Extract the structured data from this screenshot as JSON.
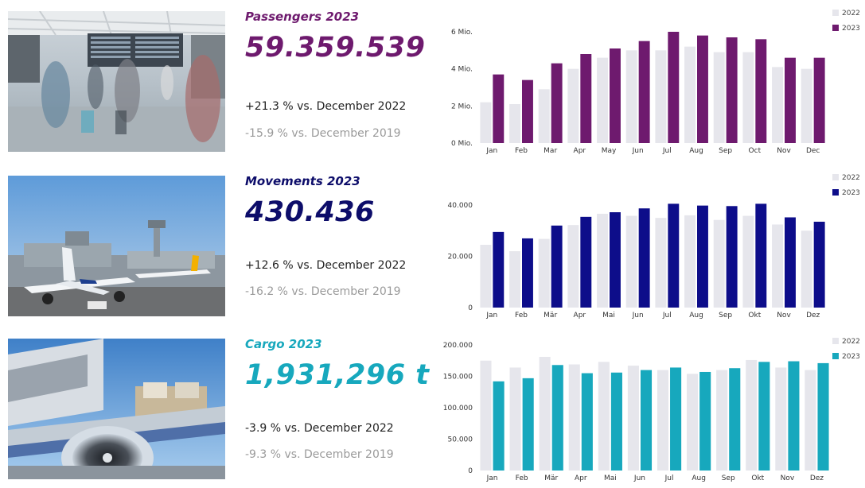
{
  "passengers": {
    "title": "Passengers 2023",
    "value": "59.359.539",
    "yoy": "+21.3 % vs. December 2022",
    "vs2019": "-15.9 % vs. December 2019",
    "color": "#6e1a6e"
  },
  "movements": {
    "title": "Movements 2023",
    "value": "430.436",
    "yoy": "+12.6 % vs. December 2022",
    "vs2019": "-16.2 % vs. December 2019",
    "color": "#0d0d8a"
  },
  "cargo": {
    "title": "Cargo 2023",
    "value": "1,931,296 t",
    "yoy": "-3.9 % vs. December 2022",
    "vs2019": "-9.3 % vs. December 2019",
    "color": "#17a8bd"
  },
  "chart_data": [
    {
      "type": "bar",
      "categories": [
        "Jan",
        "Feb",
        "Mar",
        "Apr",
        "May",
        "Jun",
        "Jul",
        "Aug",
        "Sep",
        "Oct",
        "Nov",
        "Dec"
      ],
      "series": [
        {
          "name": "2022",
          "color": "#e6e6ec",
          "values": [
            2.2,
            2.1,
            2.9,
            4.0,
            4.6,
            5.0,
            5.0,
            5.2,
            4.9,
            4.9,
            4.1,
            4.0
          ]
        },
        {
          "name": "2023",
          "color": "#6e1a6e",
          "values": [
            3.7,
            3.4,
            4.3,
            4.8,
            5.1,
            5.5,
            6.0,
            5.8,
            5.7,
            5.6,
            4.6,
            4.6
          ]
        }
      ],
      "ylim": [
        0,
        6
      ],
      "yticks": [
        {
          "v": 0,
          "label": "0 Mio."
        },
        {
          "v": 2,
          "label": "2 Mio."
        },
        {
          "v": 4,
          "label": "4 Mio."
        },
        {
          "v": 6,
          "label": "6 Mio."
        }
      ],
      "legend": "top-right"
    },
    {
      "type": "bar",
      "categories": [
        "Jan",
        "Feb",
        "Mär",
        "Apr",
        "Mai",
        "Jun",
        "Jul",
        "Aug",
        "Sep",
        "Okt",
        "Nov",
        "Dez"
      ],
      "series": [
        {
          "name": "2022",
          "color": "#e6e6ec",
          "values": [
            24500,
            22000,
            26800,
            32200,
            36600,
            35800,
            35000,
            36000,
            34200,
            35800,
            32400,
            30000
          ]
        },
        {
          "name": "2023",
          "color": "#0d0d8a",
          "values": [
            29500,
            27000,
            32000,
            35400,
            37200,
            38700,
            40500,
            39800,
            39600,
            40500,
            35200,
            33500
          ]
        }
      ],
      "ylim": [
        0,
        40000
      ],
      "yticks": [
        {
          "v": 0,
          "label": "0"
        },
        {
          "v": 20000,
          "label": "20.000"
        },
        {
          "v": 40000,
          "label": "40.000"
        }
      ],
      "legend": "top-right"
    },
    {
      "type": "bar",
      "categories": [
        "Jan",
        "Feb",
        "Mär",
        "Apr",
        "Mai",
        "Jun",
        "Jul",
        "Aug",
        "Sep",
        "Okt",
        "Nov",
        "Dez"
      ],
      "series": [
        {
          "name": "2022",
          "color": "#e6e6ec",
          "values": [
            175000,
            164000,
            181000,
            169000,
            173000,
            167000,
            160000,
            154000,
            160000,
            176000,
            164000,
            160000
          ]
        },
        {
          "name": "2023",
          "color": "#17a8bd",
          "values": [
            142000,
            147000,
            168000,
            155000,
            156000,
            160000,
            164000,
            157000,
            163000,
            173000,
            174000,
            171000
          ]
        }
      ],
      "ylim": [
        0,
        200000
      ],
      "yticks": [
        {
          "v": 0,
          "label": "0"
        },
        {
          "v": 50000,
          "label": "50.000"
        },
        {
          "v": 100000,
          "label": "100.000"
        },
        {
          "v": 150000,
          "label": "150.000"
        },
        {
          "v": 200000,
          "label": "200.000"
        }
      ],
      "legend": "top-right"
    }
  ]
}
